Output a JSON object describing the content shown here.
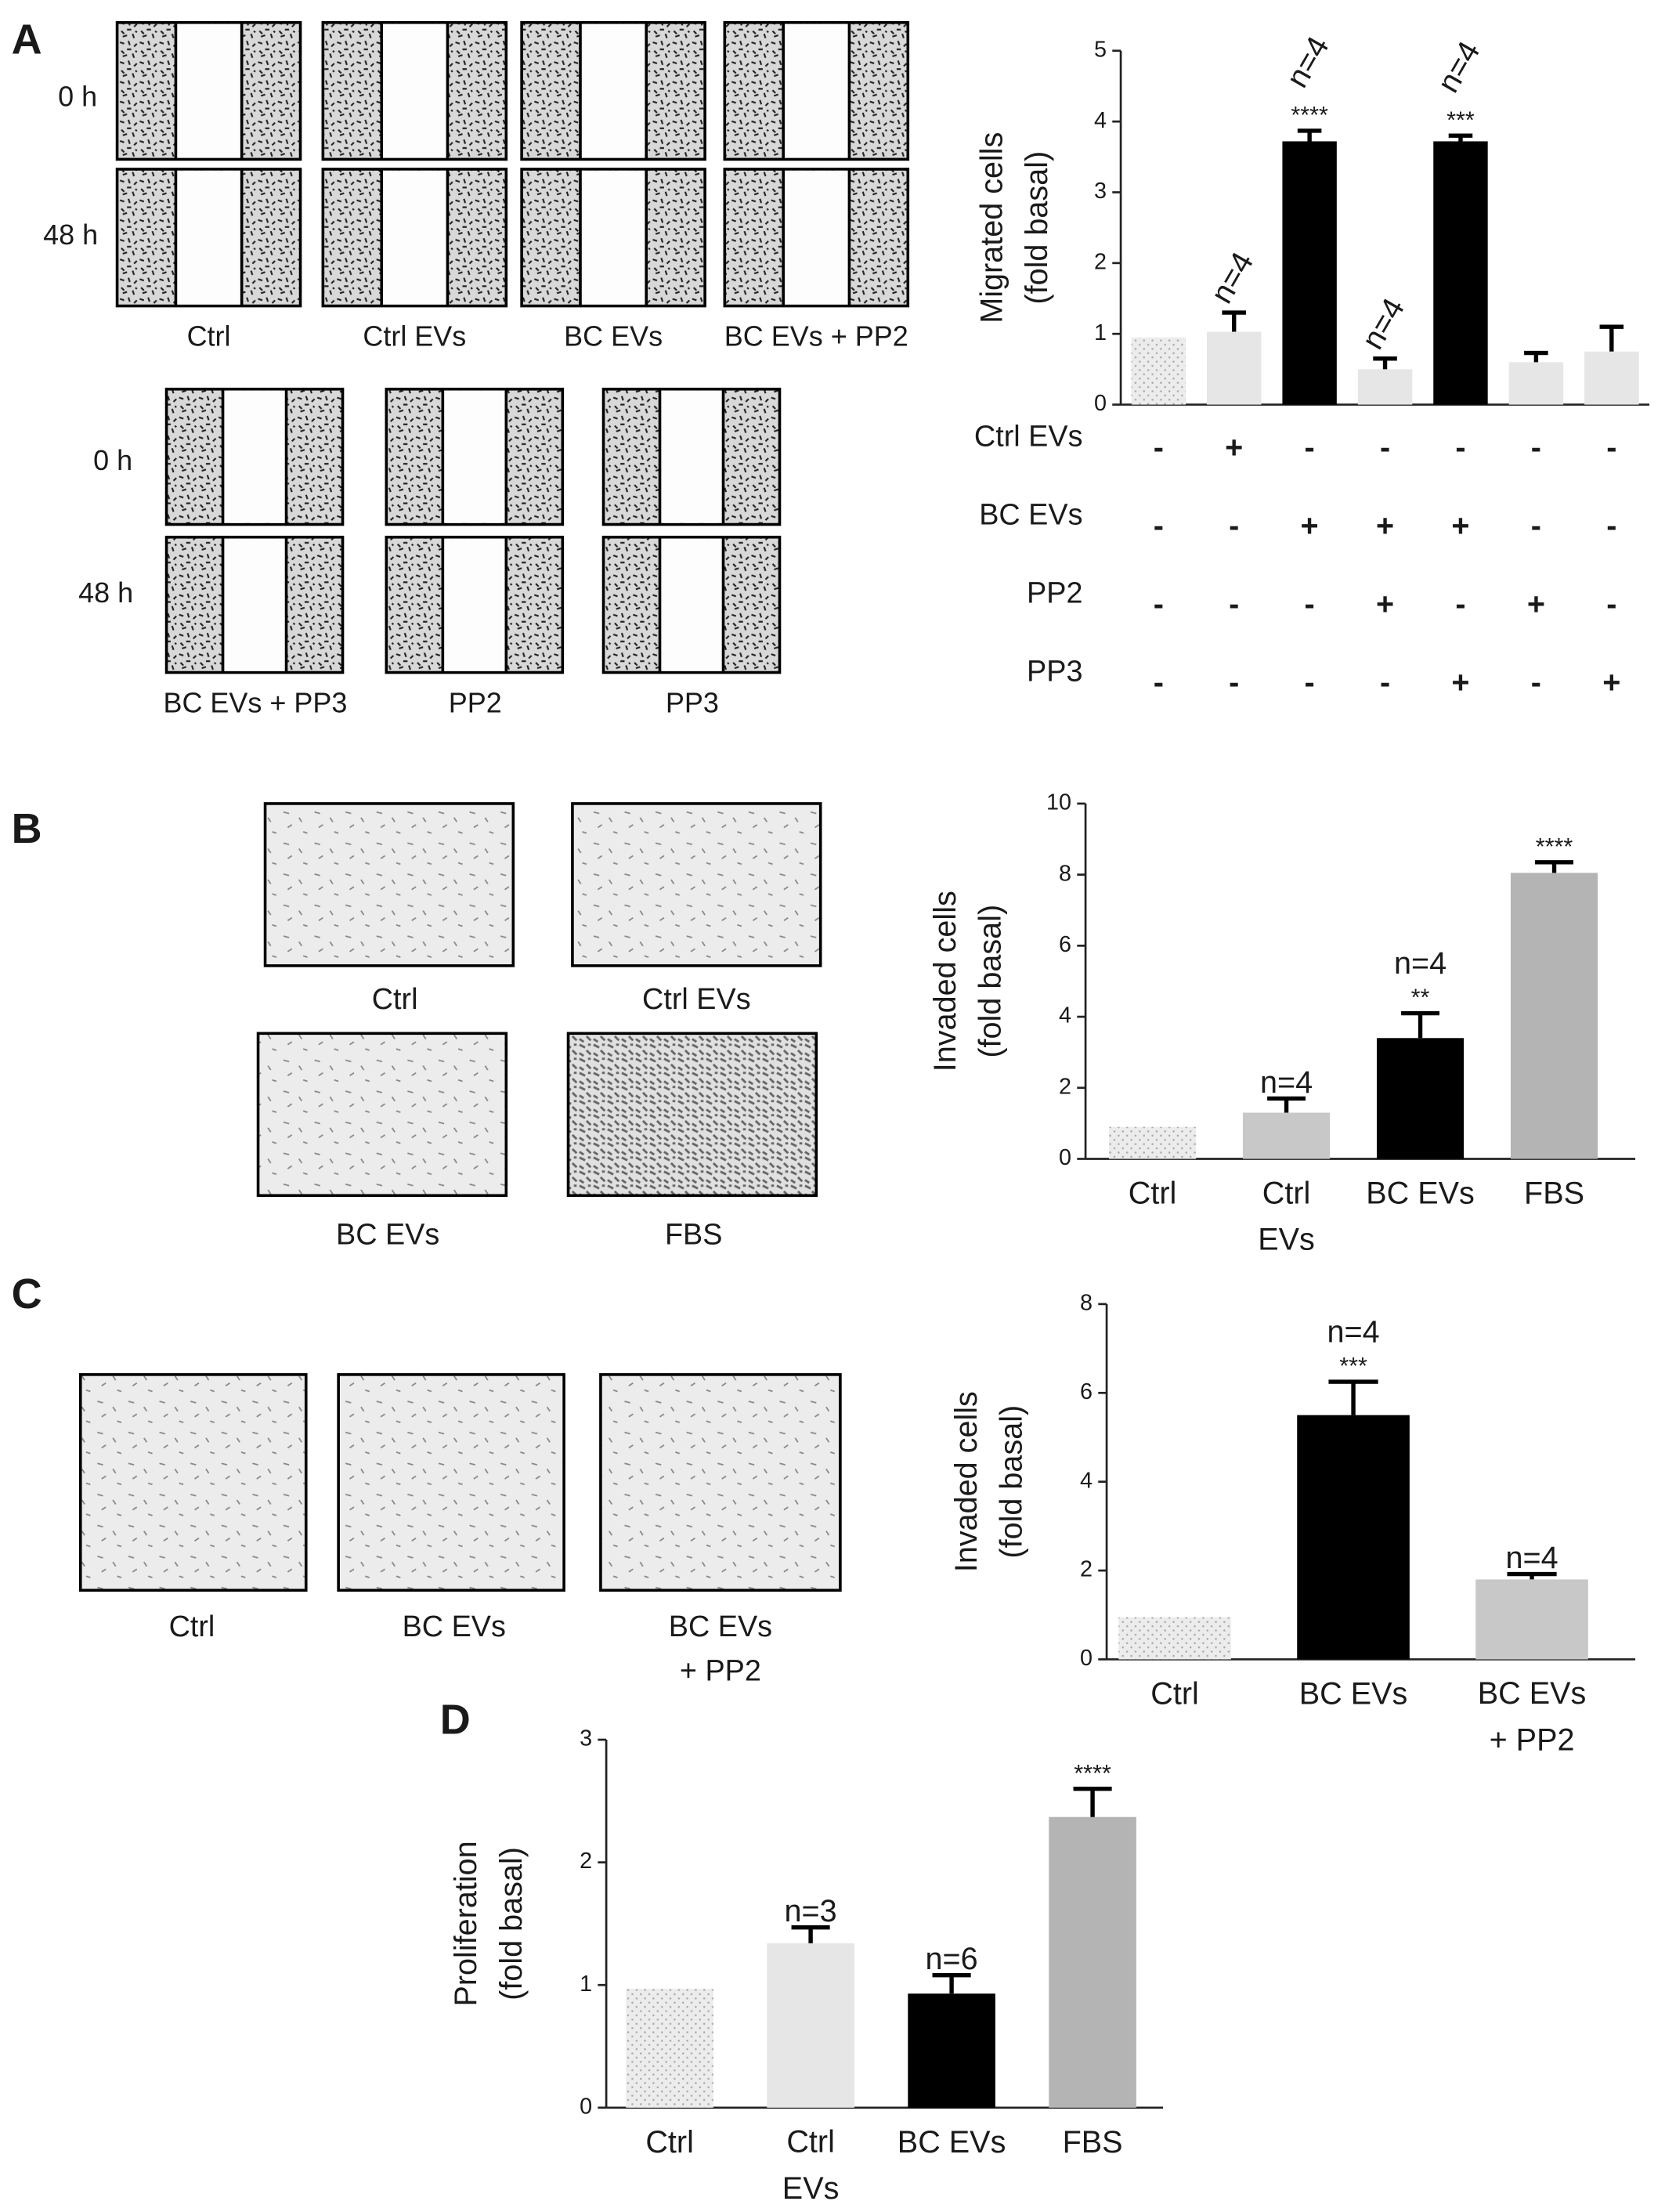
{
  "figure": {
    "letters": [
      "A",
      "B",
      "C",
      "D"
    ],
    "time_labels": [
      "0 h",
      "48 h"
    ],
    "a_images": [
      "Ctrl",
      "Ctrl EVs",
      "BC EVs",
      "BC EVs + PP2",
      "BC EVs + PP3",
      "PP2",
      "PP3"
    ],
    "b_images": [
      "Ctrl",
      "Ctrl EVs",
      "BC EVs",
      "FBS"
    ],
    "c_images": [
      "Ctrl",
      "BC EVs",
      "BC EVs\n+ PP2"
    ]
  },
  "chart_data": [
    {
      "type": "bar",
      "ylabel": [
        "Migrated cells",
        "(fold basal)"
      ],
      "values": [
        0.95,
        1.03,
        3.72,
        0.5,
        3.72,
        0.6,
        0.75
      ],
      "errors": [
        0,
        0.27,
        0.15,
        0.15,
        0.08,
        0.13,
        0.35
      ],
      "colors": [
        "#ececec",
        "#e6e6e6",
        "#000000",
        "#e6e6e6",
        "#000000",
        "#e6e6e6",
        "#e6e6e6"
      ],
      "dotted": [
        true,
        false,
        false,
        false,
        false,
        false,
        false
      ],
      "n_labels": [
        null,
        "n=4",
        "n=4",
        "n=4",
        "n=4",
        null,
        null
      ],
      "significance": [
        null,
        null,
        "****",
        null,
        "***",
        null,
        null
      ],
      "ylim": [
        0,
        5
      ],
      "yticks": [
        0,
        1,
        2,
        3,
        4,
        5
      ],
      "treatments": [
        {
          "name": "Ctrl EVs",
          "signs": [
            "-",
            "+",
            "-",
            "-",
            "-",
            "-",
            "-"
          ]
        },
        {
          "name": "BC EVs",
          "signs": [
            "-",
            "-",
            "+",
            "+",
            "+",
            "-",
            "-"
          ]
        },
        {
          "name": "PP2",
          "signs": [
            "-",
            "-",
            "-",
            "+",
            "-",
            "+",
            "-"
          ]
        },
        {
          "name": "PP3",
          "signs": [
            "-",
            "-",
            "-",
            "-",
            "+",
            "-",
            "+"
          ]
        }
      ]
    },
    {
      "type": "bar",
      "ylabel": [
        "Invaded cells",
        "(fold basal)"
      ],
      "categories": [
        "Ctrl",
        "Ctrl\nEVs",
        "BC EVs",
        "FBS"
      ],
      "values": [
        0.9,
        1.3,
        3.4,
        8.05
      ],
      "errors": [
        0,
        0.4,
        0.7,
        0.3
      ],
      "colors": [
        "#ececec",
        "#c8c8c8",
        "#000000",
        "#b4b4b4"
      ],
      "dotted": [
        true,
        false,
        false,
        false
      ],
      "n_labels": [
        null,
        "n=4",
        "n=4",
        null
      ],
      "significance": [
        null,
        null,
        "**",
        "****"
      ],
      "ylim": [
        0,
        10
      ],
      "yticks": [
        0,
        2,
        4,
        6,
        8,
        10
      ]
    },
    {
      "type": "bar",
      "ylabel": [
        "Invaded cells",
        "(fold basal)"
      ],
      "categories": [
        "Ctrl",
        "BC EVs",
        "BC EVs\n+ PP2"
      ],
      "values": [
        0.95,
        5.5,
        1.8
      ],
      "errors": [
        0,
        0.75,
        0.12
      ],
      "colors": [
        "#ececec",
        "#000000",
        "#c8c8c8"
      ],
      "dotted": [
        true,
        false,
        false
      ],
      "n_labels": [
        null,
        "n=4",
        "n=4"
      ],
      "significance": [
        null,
        "***",
        null
      ],
      "ylim": [
        0,
        8
      ],
      "yticks": [
        0,
        2,
        4,
        6,
        8
      ]
    },
    {
      "type": "bar",
      "ylabel": [
        "Proliferation",
        "(fold basal)"
      ],
      "categories": [
        "Ctrl",
        "Ctrl\nEVs",
        "BC EVs",
        "FBS"
      ],
      "values": [
        0.97,
        1.34,
        0.93,
        2.37
      ],
      "errors": [
        0,
        0.13,
        0.15,
        0.23
      ],
      "colors": [
        "#ececec",
        "#e6e6e6",
        "#000000",
        "#b4b4b4"
      ],
      "dotted": [
        true,
        false,
        false,
        false
      ],
      "n_labels": [
        null,
        "n=3",
        "n=6",
        null
      ],
      "significance": [
        null,
        null,
        null,
        "****"
      ],
      "ylim": [
        0,
        3
      ],
      "yticks": [
        0,
        1,
        2,
        3
      ]
    }
  ]
}
